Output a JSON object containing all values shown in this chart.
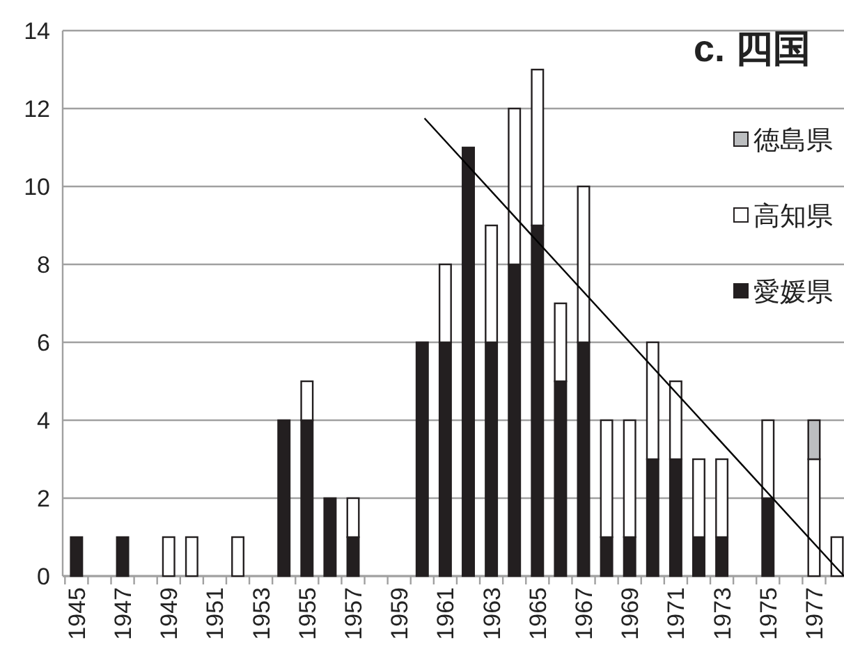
{
  "chart_data": {
    "type": "bar",
    "stacked": true,
    "title": "c. 四国",
    "x": [
      1945,
      1946,
      1947,
      1948,
      1949,
      1950,
      1951,
      1952,
      1953,
      1954,
      1955,
      1956,
      1957,
      1958,
      1959,
      1960,
      1961,
      1962,
      1963,
      1964,
      1965,
      1966,
      1967,
      1968,
      1969,
      1970,
      1971,
      1972,
      1973,
      1974,
      1975,
      1976,
      1977,
      1978
    ],
    "series": [
      {
        "name": "愛媛県",
        "color": "#231f20",
        "values": [
          1,
          0,
          1,
          0,
          0,
          0,
          0,
          0,
          0,
          4,
          4,
          2,
          1,
          0,
          0,
          6,
          6,
          11,
          6,
          8,
          9,
          5,
          6,
          1,
          1,
          3,
          3,
          1,
          1,
          0,
          2,
          0,
          0,
          0
        ]
      },
      {
        "name": "高知県",
        "color": "#ffffff",
        "values": [
          0,
          0,
          0,
          0,
          1,
          1,
          0,
          1,
          0,
          0,
          1,
          0,
          1,
          0,
          0,
          0,
          2,
          0,
          3,
          4,
          4,
          2,
          4,
          3,
          3,
          3,
          2,
          2,
          2,
          0,
          2,
          0,
          3,
          1
        ]
      },
      {
        "name": "徳島県",
        "color": "#bcbec0",
        "values": [
          0,
          0,
          0,
          0,
          0,
          0,
          0,
          0,
          0,
          0,
          0,
          0,
          0,
          0,
          0,
          0,
          0,
          0,
          0,
          0,
          0,
          0,
          0,
          0,
          0,
          0,
          0,
          0,
          0,
          0,
          0,
          0,
          1,
          0
        ]
      },
      {
        "type": "line",
        "color": "#000000",
        "x": [
          1960.1,
          1978.3
        ],
        "values": [
          11.75,
          0
        ]
      }
    ],
    "xlim": [
      1944.4,
      1978.3
    ],
    "xticks": [
      1945,
      1947,
      1949,
      1951,
      1953,
      1955,
      1957,
      1959,
      1961,
      1963,
      1965,
      1967,
      1969,
      1971,
      1973,
      1975,
      1977
    ],
    "ylim": [
      0,
      14
    ],
    "yticks": [
      0,
      2,
      4,
      6,
      8,
      10,
      12,
      14
    ],
    "grid": "y",
    "legend": "top right"
  }
}
